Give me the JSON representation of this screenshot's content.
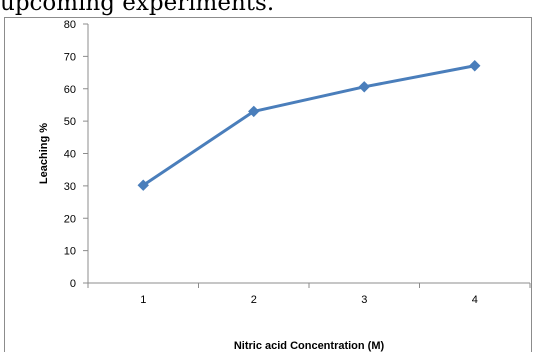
{
  "document": {
    "text_above": "upcoming experiments."
  },
  "chart_data": {
    "type": "line",
    "title": "",
    "xlabel": "Nitric acid Concentration  (M)",
    "ylabel": "Leaching %",
    "categories": [
      "1",
      "2",
      "3",
      "4"
    ],
    "x": [
      1,
      2,
      3,
      4
    ],
    "ylim": [
      0,
      80
    ],
    "yticks": [
      0,
      10,
      20,
      30,
      40,
      50,
      60,
      70,
      80
    ],
    "grid": false,
    "legend": "none",
    "series": [
      {
        "values": [
          30.2,
          53.0,
          60.6,
          67.1
        ],
        "color": "#4a7ebb",
        "marker": "diamond"
      }
    ]
  }
}
